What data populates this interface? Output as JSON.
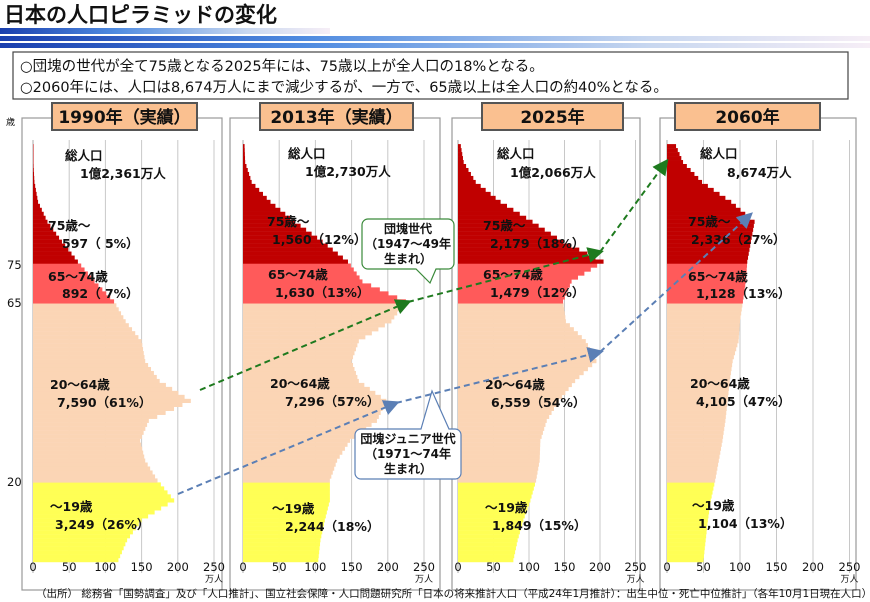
{
  "page_title": "日本の人口ピラミッドの変化",
  "info_lines": [
    "○団塊の世代が全て75歳となる2025年には、75歳以上が全人口の18%となる。",
    "○2060年には、人口は8,674万人にまで減少するが、一方で、65歳以上は全人口の約40%となる。"
  ],
  "age_axis": {
    "unit": "歳",
    "ticks": [
      "75",
      "65",
      "20"
    ]
  },
  "x_axis": {
    "ticks": [
      "0",
      "50",
      "100",
      "150",
      "200",
      "250"
    ],
    "unit": "万人"
  },
  "colors": {
    "age_0_19": "#FFFF55",
    "age_20_64": "#FBD5B5",
    "age_65_74": "#FF5A5A",
    "age_75_plus": "#C00000",
    "header_fill": "#FAC090",
    "boomer_arrow": "#1E7A1E",
    "junior_arrow": "#5B7FB5"
  },
  "callouts": {
    "boomer": [
      "団塊世代",
      "（1947～49年",
      "生まれ）"
    ],
    "junior": [
      "団塊ジュニア世代",
      "（1971～74年",
      "生まれ）"
    ]
  },
  "source": "（出所） 総務省「国勢調査」及び「人口推計」、国立社会保障・人口問題研究所「日本の将来推計人口（平成24年1月推計）：出生中位・死亡中位推計」（各年10月1日現在人口）",
  "chart_data": [
    {
      "type": "bar",
      "orientation": "horizontal",
      "title": "1990年（実績）",
      "total_label": "総人口",
      "total_value": "1億2,361万人",
      "groups": [
        {
          "label": "75歳～",
          "value": "597（ 5%）"
        },
        {
          "label": "65～74歳",
          "value": "892（ 7%）"
        },
        {
          "label": "20～64歳",
          "value": "7,590（61%）"
        },
        {
          "label": "～19歳",
          "value": "3,249（26%）"
        }
      ],
      "ages": [
        0,
        5,
        10,
        15,
        20,
        25,
        30,
        35,
        40,
        45,
        50,
        55,
        60,
        65,
        70,
        75,
        80,
        85,
        90,
        95,
        100,
        105
      ],
      "population": [
        118,
        130,
        150,
        195,
        172,
        155,
        148,
        160,
        218,
        175,
        155,
        150,
        128,
        112,
        85,
        62,
        40,
        20,
        7,
        2,
        0.5,
        0.2
      ],
      "xlim": [
        0,
        250
      ]
    },
    {
      "type": "bar",
      "orientation": "horizontal",
      "title": "2013年（実績）",
      "total_label": "総人口",
      "total_value": "1億2,730万人",
      "groups": [
        {
          "label": "75歳～",
          "value": "1,560（12%）"
        },
        {
          "label": "65～74歳",
          "value": "1,630（13%）"
        },
        {
          "label": "20～64歳",
          "value": "7,296（57%）"
        },
        {
          "label": "～19歳",
          "value": "2,244（18%）"
        }
      ],
      "ages": [
        0,
        5,
        10,
        15,
        20,
        25,
        30,
        35,
        40,
        45,
        50,
        55,
        60,
        65,
        70,
        75,
        80,
        85,
        90,
        95,
        100,
        105
      ],
      "population": [
        104,
        107,
        113,
        120,
        120,
        130,
        148,
        185,
        198,
        160,
        150,
        160,
        205,
        225,
        165,
        145,
        110,
        72,
        38,
        12,
        3,
        2
      ],
      "xlim": [
        0,
        250
      ]
    },
    {
      "type": "bar",
      "orientation": "horizontal",
      "title": "2025年",
      "total_label": "総人口",
      "total_value": "1億2,066万人",
      "groups": [
        {
          "label": "75歳～",
          "value": "2,179（18%）"
        },
        {
          "label": "65～74歳",
          "value": "1,479（12%）"
        },
        {
          "label": "20～64歳",
          "value": "6,559（54%）"
        },
        {
          "label": "～19歳",
          "value": "1,849（15%）"
        }
      ],
      "ages": [
        0,
        5,
        10,
        15,
        20,
        25,
        30,
        35,
        40,
        45,
        50,
        55,
        60,
        65,
        70,
        75,
        80,
        85,
        90,
        95,
        100,
        105
      ],
      "population": [
        78,
        84,
        92,
        102,
        110,
        115,
        116,
        125,
        142,
        165,
        195,
        180,
        152,
        148,
        160,
        205,
        148,
        105,
        60,
        25,
        8,
        3
      ],
      "xlim": [
        0,
        250
      ]
    },
    {
      "type": "bar",
      "orientation": "horizontal",
      "title": "2060年",
      "total_label": "総人口",
      "total_value": "8,674万人",
      "groups": [
        {
          "label": "75歳～",
          "value": "2,336（27%）"
        },
        {
          "label": "65～74歳",
          "value": "1,128（13%）"
        },
        {
          "label": "20～64歳",
          "value": "4,105（47%）"
        },
        {
          "label": "～19歳",
          "value": "1,104（13%）"
        }
      ],
      "ages": [
        0,
        5,
        10,
        15,
        20,
        25,
        30,
        35,
        40,
        45,
        50,
        55,
        60,
        65,
        70,
        75,
        80,
        85,
        90,
        95,
        100,
        105
      ],
      "population": [
        50,
        53,
        56,
        60,
        66,
        71,
        76,
        80,
        83,
        86,
        90,
        98,
        100,
        104,
        108,
        110,
        115,
        120,
        88,
        48,
        22,
        10
      ],
      "xlim": [
        0,
        250
      ]
    }
  ]
}
